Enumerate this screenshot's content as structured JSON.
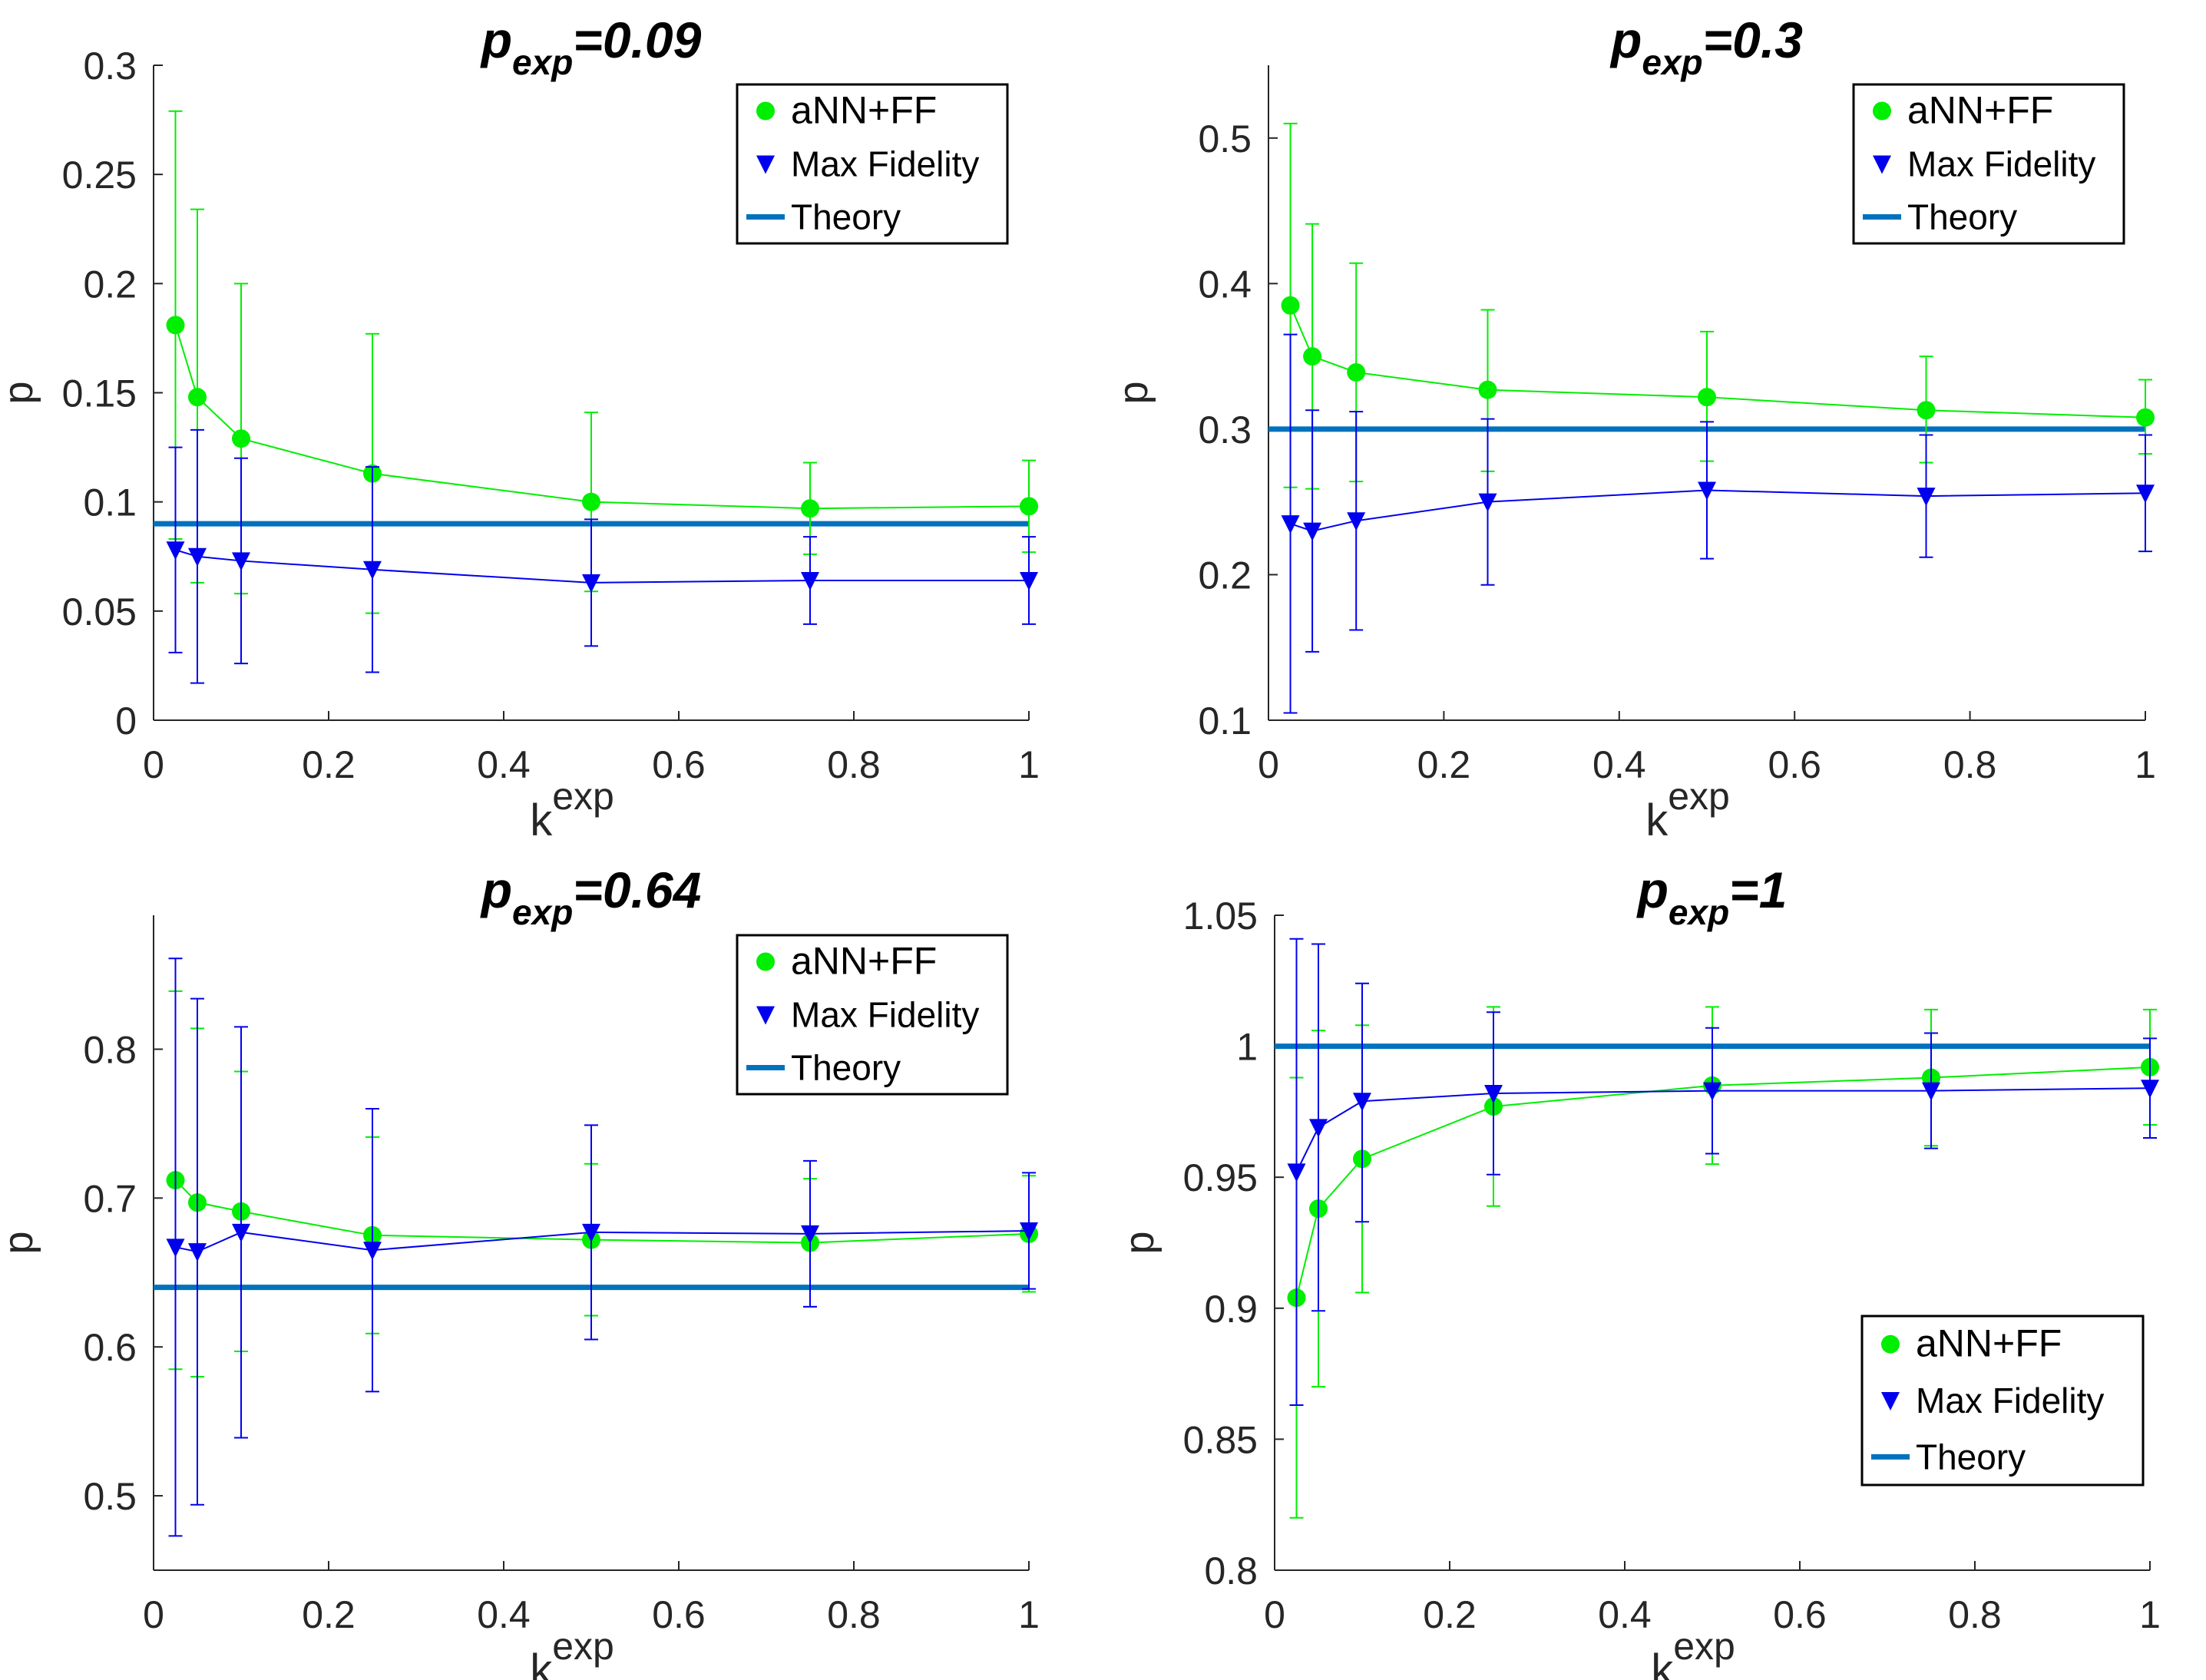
{
  "figure": {
    "name": "four-panel-p-vs-kexp-figure"
  },
  "colors": {
    "ann": "#00EE00",
    "mf": "#0000EE",
    "theory": "#0072BD",
    "axis": "#262626"
  },
  "chart_data": [
    {
      "type": "line",
      "title": {
        "main": "p",
        "sub": "exp",
        "suffix": "=0.09"
      },
      "xlabel": {
        "main": "k",
        "sup": "exp"
      },
      "ylabel": "p",
      "xlim": [
        0,
        1
      ],
      "ylim": [
        0,
        0.3
      ],
      "xticks": [
        0,
        0.2,
        0.4,
        0.6,
        0.8,
        1
      ],
      "xtick_labels": [
        "0",
        "0.2",
        "0.4",
        "0.6",
        "0.8",
        "1"
      ],
      "yticks": [
        0,
        0.05,
        0.1,
        0.15,
        0.2,
        0.25,
        0.3
      ],
      "ytick_labels": [
        "0",
        "0.05",
        "0.1",
        "0.15",
        "0.2",
        "0.25",
        "0.3"
      ],
      "legend": {
        "position": "top-right",
        "entries": [
          "aNN+FF",
          "Max Fidelity",
          "Theory"
        ]
      },
      "theory": 0.09,
      "x": [
        0.025,
        0.05,
        0.1,
        0.25,
        0.5,
        0.75,
        1
      ],
      "series": [
        {
          "name": "aNN+FF",
          "y": [
            0.181,
            0.148,
            0.129,
            0.113,
            0.1,
            0.097,
            0.098
          ],
          "lower": [
            0.083,
            0.063,
            0.058,
            0.049,
            0.059,
            0.076,
            0.077
          ],
          "upper": [
            0.279,
            0.234,
            0.2,
            0.177,
            0.141,
            0.118,
            0.119
          ]
        },
        {
          "name": "Max Fidelity",
          "y": [
            0.078,
            0.075,
            0.073,
            0.069,
            0.063,
            0.064,
            0.064
          ],
          "lower": [
            0.031,
            0.017,
            0.026,
            0.022,
            0.034,
            0.044,
            0.044
          ],
          "upper": [
            0.125,
            0.133,
            0.12,
            0.116,
            0.092,
            0.084,
            0.084
          ]
        }
      ]
    },
    {
      "type": "line",
      "title": {
        "main": "p",
        "sub": "exp",
        "suffix": "=0.3"
      },
      "xlabel": {
        "main": "k",
        "sup": "exp"
      },
      "ylabel": "p",
      "xlim": [
        0,
        1
      ],
      "ylim": [
        0.1,
        0.55
      ],
      "xticks": [
        0,
        0.2,
        0.4,
        0.6,
        0.8,
        1
      ],
      "xtick_labels": [
        "0",
        "0.2",
        "0.4",
        "0.6",
        "0.8",
        "1"
      ],
      "yticks": [
        0.1,
        0.2,
        0.3,
        0.4,
        0.5
      ],
      "ytick_labels": [
        "0.1",
        "0.2",
        "0.3",
        "0.4",
        "0.5"
      ],
      "legend": {
        "position": "top-right",
        "entries": [
          "aNN+FF",
          "Max Fidelity",
          "Theory"
        ]
      },
      "theory": 0.3,
      "x": [
        0.025,
        0.05,
        0.1,
        0.25,
        0.5,
        0.75,
        1
      ],
      "series": [
        {
          "name": "aNN+FF",
          "y": [
            0.385,
            0.35,
            0.339,
            0.327,
            0.322,
            0.313,
            0.308
          ],
          "lower": [
            0.26,
            0.259,
            0.264,
            0.271,
            0.278,
            0.277,
            0.283
          ],
          "upper": [
            0.51,
            0.441,
            0.414,
            0.382,
            0.367,
            0.35,
            0.334
          ]
        },
        {
          "name": "Max Fidelity",
          "y": [
            0.235,
            0.23,
            0.237,
            0.25,
            0.258,
            0.254,
            0.256
          ],
          "lower": [
            0.105,
            0.147,
            0.162,
            0.193,
            0.211,
            0.212,
            0.216
          ],
          "upper": [
            0.365,
            0.313,
            0.312,
            0.307,
            0.305,
            0.296,
            0.296
          ]
        }
      ]
    },
    {
      "type": "line",
      "title": {
        "main": "p",
        "sub": "exp",
        "suffix": "=0.64"
      },
      "xlabel": {
        "main": "k",
        "sup": "exp"
      },
      "ylabel": "p",
      "xlim": [
        0,
        1
      ],
      "ylim": [
        0.45,
        0.89
      ],
      "xticks": [
        0,
        0.2,
        0.4,
        0.6,
        0.8,
        1
      ],
      "xtick_labels": [
        "0",
        "0.2",
        "0.4",
        "0.6",
        "0.8",
        "1"
      ],
      "yticks": [
        0.5,
        0.6,
        0.7,
        0.8
      ],
      "ytick_labels": [
        "0.5",
        "0.6",
        "0.7",
        "0.8"
      ],
      "legend": {
        "position": "top-right",
        "entries": [
          "aNN+FF",
          "Max Fidelity",
          "Theory"
        ]
      },
      "theory": 0.64,
      "x": [
        0.025,
        0.05,
        0.1,
        0.25,
        0.5,
        0.75,
        1
      ],
      "series": [
        {
          "name": "aNN+FF",
          "y": [
            0.712,
            0.697,
            0.691,
            0.675,
            0.672,
            0.67,
            0.676
          ],
          "lower": [
            0.585,
            0.58,
            0.597,
            0.609,
            0.621,
            0.627,
            0.637
          ],
          "upper": [
            0.839,
            0.814,
            0.785,
            0.741,
            0.723,
            0.713,
            0.715
          ]
        },
        {
          "name": "Max Fidelity",
          "y": [
            0.667,
            0.664,
            0.677,
            0.665,
            0.677,
            0.676,
            0.678
          ],
          "lower": [
            0.473,
            0.494,
            0.539,
            0.57,
            0.605,
            0.627,
            0.639
          ],
          "upper": [
            0.861,
            0.834,
            0.815,
            0.76,
            0.749,
            0.725,
            0.717
          ]
        }
      ]
    },
    {
      "type": "line",
      "title": {
        "main": "p",
        "sub": "exp",
        "suffix": "=1"
      },
      "xlabel": {
        "main": "k",
        "sup": "exp"
      },
      "ylabel": "p",
      "xlim": [
        0,
        1
      ],
      "ylim": [
        0.8,
        1.05
      ],
      "xticks": [
        0,
        0.2,
        0.4,
        0.6,
        0.8,
        1
      ],
      "xtick_labels": [
        "0",
        "0.2",
        "0.4",
        "0.6",
        "0.8",
        "1"
      ],
      "yticks": [
        0.8,
        0.85,
        0.9,
        0.95,
        1,
        1.05
      ],
      "ytick_labels": [
        "0.8",
        "0.85",
        "0.9",
        "0.95",
        "1",
        "1.05"
      ],
      "legend": {
        "position": "bottom-right",
        "entries": [
          "aNN+FF",
          "Max Fidelity",
          "Theory"
        ]
      },
      "theory": 1,
      "x": [
        0.025,
        0.05,
        0.1,
        0.25,
        0.5,
        0.75,
        1
      ],
      "series": [
        {
          "name": "aNN+FF",
          "y": [
            0.904,
            0.938,
            0.957,
            0.977,
            0.985,
            0.988,
            0.992
          ],
          "lower": [
            0.82,
            0.87,
            0.906,
            0.939,
            0.955,
            0.962,
            0.97
          ],
          "upper": [
            0.988,
            1.006,
            1.008,
            1.015,
            1.015,
            1.014,
            1.014
          ]
        },
        {
          "name": "Max Fidelity",
          "y": [
            0.952,
            0.969,
            0.979,
            0.982,
            0.983,
            0.983,
            0.984
          ],
          "lower": [
            0.863,
            0.899,
            0.933,
            0.951,
            0.959,
            0.961,
            0.965
          ],
          "upper": [
            1.041,
            1.039,
            1.024,
            1.013,
            1.007,
            1.005,
            1.003
          ]
        }
      ]
    }
  ]
}
